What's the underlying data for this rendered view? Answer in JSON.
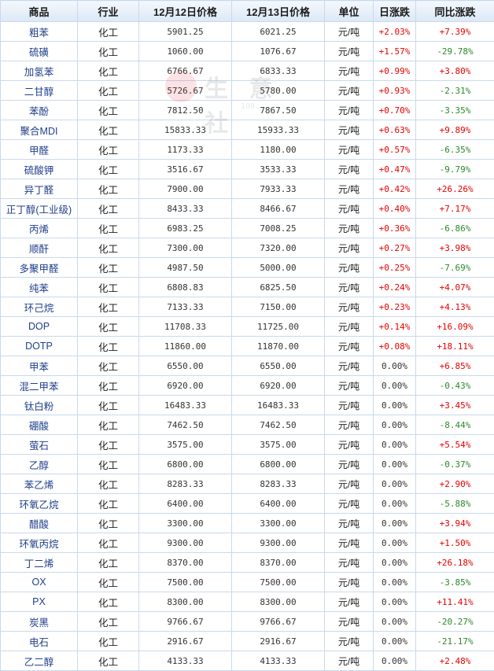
{
  "headers": [
    "商品",
    "行业",
    "12月12日价格",
    "12月13日价格",
    "单位",
    "日涨跌",
    "同比涨跌"
  ],
  "watermark": {
    "text": "生 意 社",
    "url": "100..."
  },
  "rows": [
    {
      "name": "粗苯",
      "industry": "化工",
      "p12": "5901.25",
      "p13": "6021.25",
      "unit": "元/吨",
      "day": "+2.03%",
      "yoy": "+7.39%"
    },
    {
      "name": "硫磺",
      "industry": "化工",
      "p12": "1060.00",
      "p13": "1076.67",
      "unit": "元/吨",
      "day": "+1.57%",
      "yoy": "-29.78%"
    },
    {
      "name": "加氢苯",
      "industry": "化工",
      "p12": "6766.67",
      "p13": "6833.33",
      "unit": "元/吨",
      "day": "+0.99%",
      "yoy": "+3.80%"
    },
    {
      "name": "二甘醇",
      "industry": "化工",
      "p12": "5726.67",
      "p13": "5780.00",
      "unit": "元/吨",
      "day": "+0.93%",
      "yoy": "-2.31%"
    },
    {
      "name": "苯酚",
      "industry": "化工",
      "p12": "7812.50",
      "p13": "7867.50",
      "unit": "元/吨",
      "day": "+0.70%",
      "yoy": "-3.35%"
    },
    {
      "name": "聚合MDI",
      "industry": "化工",
      "p12": "15833.33",
      "p13": "15933.33",
      "unit": "元/吨",
      "day": "+0.63%",
      "yoy": "+9.89%"
    },
    {
      "name": "甲醛",
      "industry": "化工",
      "p12": "1173.33",
      "p13": "1180.00",
      "unit": "元/吨",
      "day": "+0.57%",
      "yoy": "-6.35%"
    },
    {
      "name": "硫酸钾",
      "industry": "化工",
      "p12": "3516.67",
      "p13": "3533.33",
      "unit": "元/吨",
      "day": "+0.47%",
      "yoy": "-9.79%"
    },
    {
      "name": "异丁醛",
      "industry": "化工",
      "p12": "7900.00",
      "p13": "7933.33",
      "unit": "元/吨",
      "day": "+0.42%",
      "yoy": "+26.26%"
    },
    {
      "name": "正丁醇(工业级)",
      "industry": "化工",
      "p12": "8433.33",
      "p13": "8466.67",
      "unit": "元/吨",
      "day": "+0.40%",
      "yoy": "+7.17%"
    },
    {
      "name": "丙烯",
      "industry": "化工",
      "p12": "6983.25",
      "p13": "7008.25",
      "unit": "元/吨",
      "day": "+0.36%",
      "yoy": "-6.86%"
    },
    {
      "name": "顺酐",
      "industry": "化工",
      "p12": "7300.00",
      "p13": "7320.00",
      "unit": "元/吨",
      "day": "+0.27%",
      "yoy": "+3.98%"
    },
    {
      "name": "多聚甲醛",
      "industry": "化工",
      "p12": "4987.50",
      "p13": "5000.00",
      "unit": "元/吨",
      "day": "+0.25%",
      "yoy": "-7.69%"
    },
    {
      "name": "纯苯",
      "industry": "化工",
      "p12": "6808.83",
      "p13": "6825.50",
      "unit": "元/吨",
      "day": "+0.24%",
      "yoy": "+4.07%"
    },
    {
      "name": "环己烷",
      "industry": "化工",
      "p12": "7133.33",
      "p13": "7150.00",
      "unit": "元/吨",
      "day": "+0.23%",
      "yoy": "+4.13%"
    },
    {
      "name": "DOP",
      "industry": "化工",
      "p12": "11708.33",
      "p13": "11725.00",
      "unit": "元/吨",
      "day": "+0.14%",
      "yoy": "+16.09%"
    },
    {
      "name": "DOTP",
      "industry": "化工",
      "p12": "11860.00",
      "p13": "11870.00",
      "unit": "元/吨",
      "day": "+0.08%",
      "yoy": "+18.11%"
    },
    {
      "name": "甲苯",
      "industry": "化工",
      "p12": "6550.00",
      "p13": "6550.00",
      "unit": "元/吨",
      "day": "0.00%",
      "yoy": "+6.85%"
    },
    {
      "name": "混二甲苯",
      "industry": "化工",
      "p12": "6920.00",
      "p13": "6920.00",
      "unit": "元/吨",
      "day": "0.00%",
      "yoy": "-0.43%"
    },
    {
      "name": "钛白粉",
      "industry": "化工",
      "p12": "16483.33",
      "p13": "16483.33",
      "unit": "元/吨",
      "day": "0.00%",
      "yoy": "+3.45%"
    },
    {
      "name": "硼酸",
      "industry": "化工",
      "p12": "7462.50",
      "p13": "7462.50",
      "unit": "元/吨",
      "day": "0.00%",
      "yoy": "-8.44%"
    },
    {
      "name": "萤石",
      "industry": "化工",
      "p12": "3575.00",
      "p13": "3575.00",
      "unit": "元/吨",
      "day": "0.00%",
      "yoy": "+5.54%"
    },
    {
      "name": "乙醇",
      "industry": "化工",
      "p12": "6800.00",
      "p13": "6800.00",
      "unit": "元/吨",
      "day": "0.00%",
      "yoy": "-0.37%"
    },
    {
      "name": "苯乙烯",
      "industry": "化工",
      "p12": "8283.33",
      "p13": "8283.33",
      "unit": "元/吨",
      "day": "0.00%",
      "yoy": "+2.90%"
    },
    {
      "name": "环氧乙烷",
      "industry": "化工",
      "p12": "6400.00",
      "p13": "6400.00",
      "unit": "元/吨",
      "day": "0.00%",
      "yoy": "-5.88%"
    },
    {
      "name": "醋酸",
      "industry": "化工",
      "p12": "3300.00",
      "p13": "3300.00",
      "unit": "元/吨",
      "day": "0.00%",
      "yoy": "+3.94%"
    },
    {
      "name": "环氧丙烷",
      "industry": "化工",
      "p12": "9300.00",
      "p13": "9300.00",
      "unit": "元/吨",
      "day": "0.00%",
      "yoy": "+1.50%"
    },
    {
      "name": "丁二烯",
      "industry": "化工",
      "p12": "8370.00",
      "p13": "8370.00",
      "unit": "元/吨",
      "day": "0.00%",
      "yoy": "+26.18%"
    },
    {
      "name": "OX",
      "industry": "化工",
      "p12": "7500.00",
      "p13": "7500.00",
      "unit": "元/吨",
      "day": "0.00%",
      "yoy": "-3.85%"
    },
    {
      "name": "PX",
      "industry": "化工",
      "p12": "8300.00",
      "p13": "8300.00",
      "unit": "元/吨",
      "day": "0.00%",
      "yoy": "+11.41%"
    },
    {
      "name": "炭黑",
      "industry": "化工",
      "p12": "9766.67",
      "p13": "9766.67",
      "unit": "元/吨",
      "day": "0.00%",
      "yoy": "-20.27%"
    },
    {
      "name": "电石",
      "industry": "化工",
      "p12": "2916.67",
      "p13": "2916.67",
      "unit": "元/吨",
      "day": "0.00%",
      "yoy": "-21.17%"
    },
    {
      "name": "乙二醇",
      "industry": "化工",
      "p12": "4133.33",
      "p13": "4133.33",
      "unit": "元/吨",
      "day": "0.00%",
      "yoy": "+2.48%"
    }
  ]
}
